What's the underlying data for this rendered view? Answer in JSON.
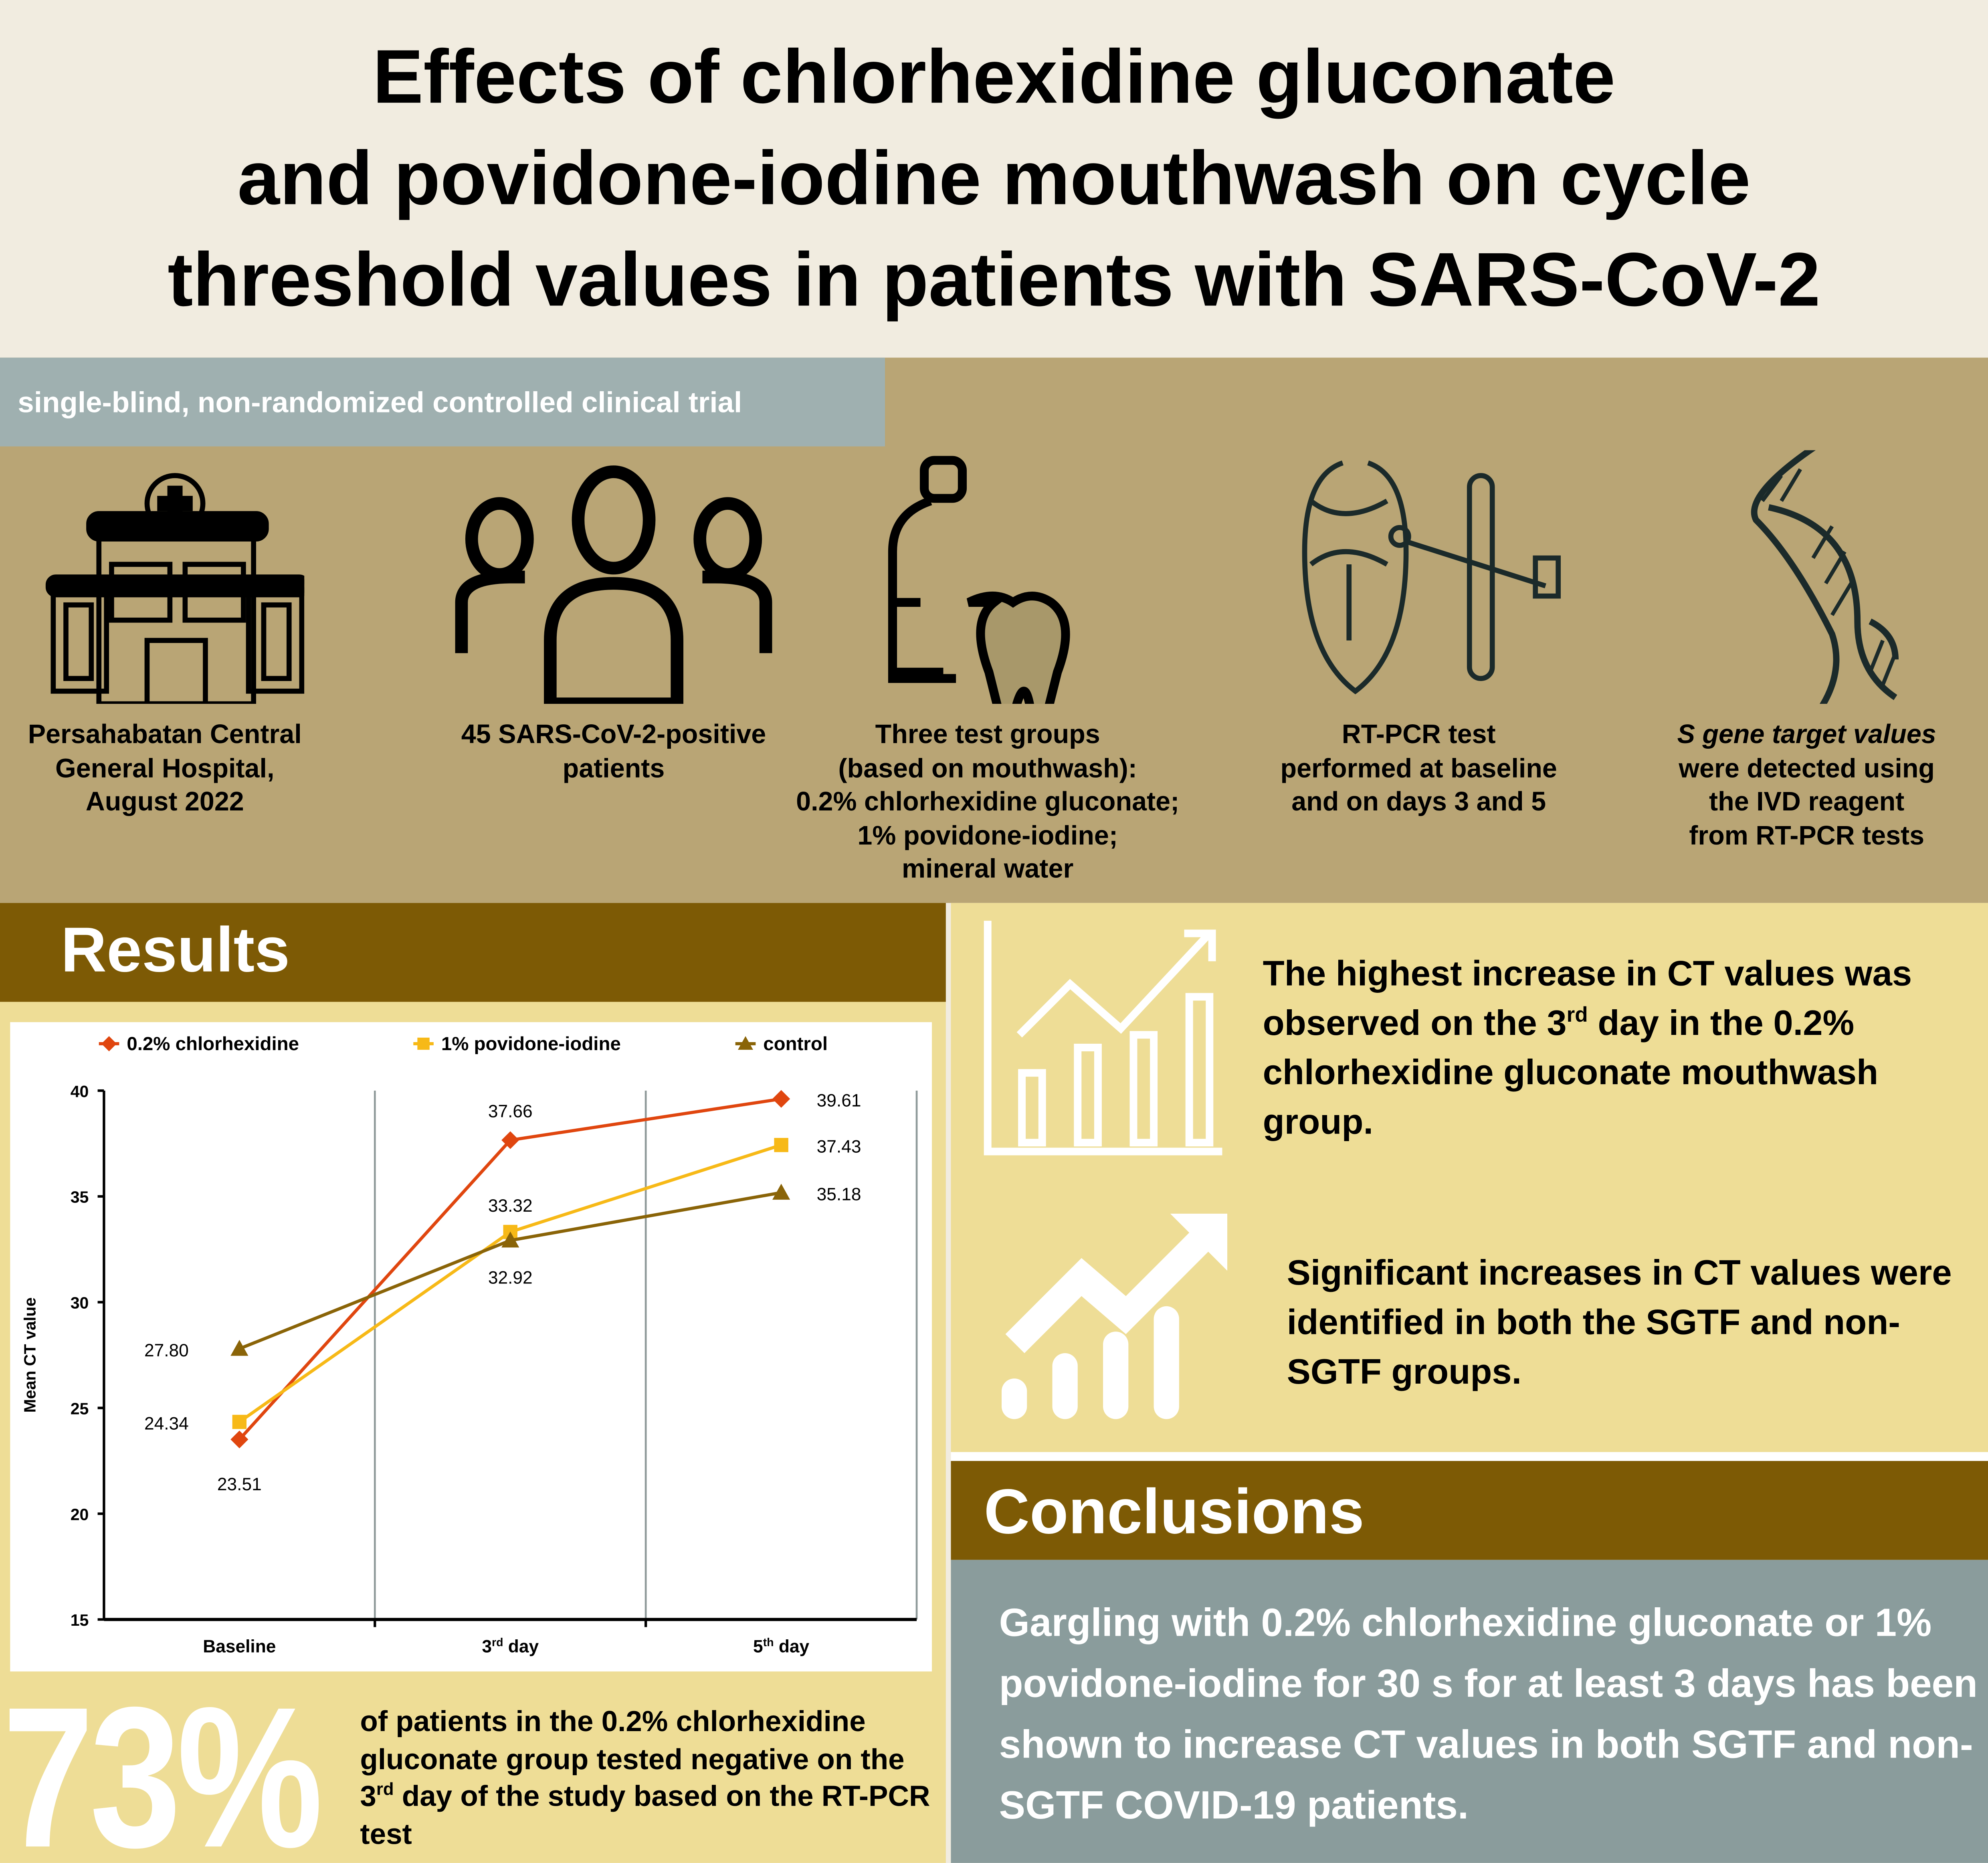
{
  "title": [
    "Effects of chlorhexidine gluconate",
    "and povidone-iodine mouthwash on cycle",
    "threshold values in patients with SARS-CoV-2"
  ],
  "design": "single-blind, non-randomized controlled clinical trial",
  "methods": [
    {
      "icon": "hospital-icon",
      "lines": [
        "Persahabatan Central",
        "General Hospital,",
        "August 2022"
      ]
    },
    {
      "icon": "people-icon",
      "lines": [
        "45 SARS-CoV-2-positive",
        "patients"
      ]
    },
    {
      "icon": "mouthwash-tooth-icon",
      "lines": [
        "Three test groups",
        "(based on mouthwash):",
        "0.2% chlorhexidine gluconate;",
        "1% povidone-iodine;",
        "mineral water"
      ]
    },
    {
      "icon": "mouth-swab-icon",
      "lines": [
        "RT-PCR test",
        "performed at baseline",
        "and on days 3 and 5"
      ]
    },
    {
      "icon": "dna-icon",
      "lines": [
        "S gene target values",
        "were detected using",
        "the IVD reagent",
        "from RT-PCR tests"
      ]
    }
  ],
  "results": {
    "heading": "Results",
    "finding1": {
      "pre": "The highest increase in CT values was observed on the 3",
      "sup": "rd",
      "post": " day in the 0.2% chlorhexidine gluconate mouthwash group."
    },
    "finding2": "Significant increases in CT values were identified in both the SGTF and non-SGTF groups.",
    "percent": "73%",
    "percent_text": {
      "pre": "of patients in the 0.2% chlorhexidine gluconate group tested negative on the 3",
      "sup": "rd",
      "post": " day of the study based on the RT-PCR test"
    }
  },
  "conclusions": {
    "heading": "Conclusions",
    "text": "Gargling with 0.2% chlorhexidine gluconate or 1% povidone-iodine for 30 s for at least 3 days has been shown to increase CT values in both SGTF and non-SGTF COVID-19 patients."
  },
  "chart_data": {
    "type": "line",
    "categories": [
      {
        "base": "Baseline",
        "sup": ""
      },
      {
        "base": "3",
        "sup": "rd",
        "post": " day"
      },
      {
        "base": "5",
        "sup": "th",
        "post": " day"
      }
    ],
    "ylabel": "Mean CT value",
    "ylim": [
      15,
      40
    ],
    "yticks": [
      15,
      20,
      25,
      30,
      35,
      40
    ],
    "legend_position": "top",
    "grid": "vertical",
    "series": [
      {
        "name": "0.2% chlorhexidine",
        "color": "#e0460f",
        "marker": "diamond",
        "values": [
          23.51,
          37.66,
          39.61
        ],
        "labels": [
          "23.51",
          "37.66",
          "39.61"
        ]
      },
      {
        "name": "1% povidone-iodine",
        "color": "#f7b917",
        "marker": "square",
        "values": [
          24.34,
          33.32,
          37.43
        ],
        "labels": [
          "24.34",
          "33.32",
          "37.43"
        ]
      },
      {
        "name": "control",
        "color": "#8a6408",
        "marker": "triangle",
        "values": [
          27.8,
          32.92,
          35.18
        ],
        "labels": [
          "27.80",
          "32.92",
          "35.18"
        ]
      }
    ]
  }
}
